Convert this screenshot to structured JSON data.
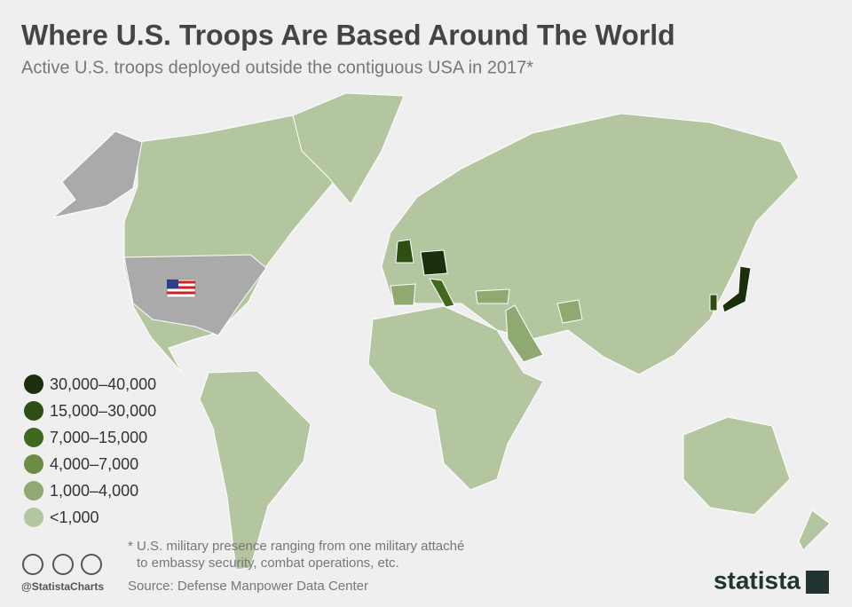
{
  "header": {
    "title": "Where U.S. Troops Are Based Around The World",
    "subtitle": "Active U.S. troops deployed outside the contiguous USA in 2017*"
  },
  "legend": [
    {
      "label": "30,000–40,000",
      "color": "#1b2f0c"
    },
    {
      "label": "15,000–30,000",
      "color": "#2e4f14"
    },
    {
      "label": "7,000–15,000",
      "color": "#40691f"
    },
    {
      "label": "4,000–7,000",
      "color": "#6a8c45"
    },
    {
      "label": "1,000–4,000",
      "color": "#8fa971"
    },
    {
      "label": "<1,000",
      "color": "#b3c6a0"
    }
  ],
  "footnote": [
    "* U.S. military presence ranging from one military attaché",
    "to embassy security, combat operations, etc."
  ],
  "handle": "@StatistaCharts",
  "source": "Source: Defense Manpower Data Center",
  "brand": "statista"
}
